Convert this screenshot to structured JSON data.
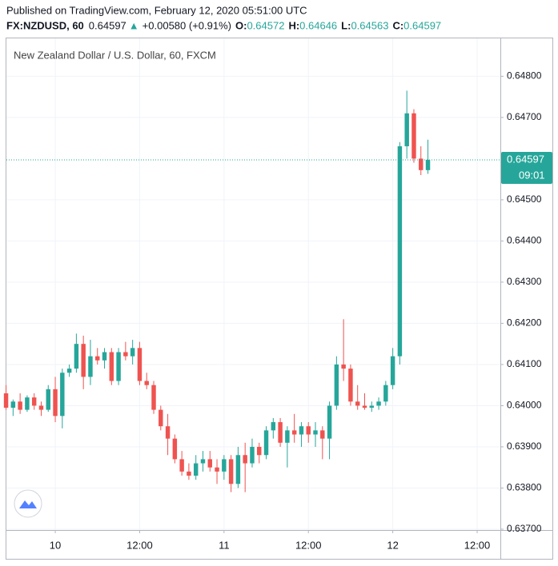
{
  "header": {
    "published": "Published on TradingView.com, February 12, 2020 05:51:00 UTC",
    "symbol": "FX:NZDUSD, 60",
    "price": "0.64597",
    "arrow": "▲",
    "change": "+0.00580 (+0.91%)",
    "ohlc": [
      {
        "label": "O:",
        "value": "0.64572"
      },
      {
        "label": "H:",
        "value": "0.64646"
      },
      {
        "label": "L:",
        "value": "0.64563"
      },
      {
        "label": "C:",
        "value": "0.64597"
      }
    ]
  },
  "chart_data": {
    "type": "candlestick",
    "title": "New Zealand Dollar / U.S. Dollar, 60, FXCM",
    "up_color": "#26a69a",
    "down_color": "#ef5350",
    "grid": true,
    "last_price": {
      "value": 0.64597,
      "label": "0.64597",
      "countdown": "09:01"
    },
    "xlim": [
      -6.95,
      63.3
    ],
    "xticks": [
      {
        "value": 0,
        "label": "10"
      },
      {
        "value": 12,
        "label": "12:00"
      },
      {
        "value": 24,
        "label": "11"
      },
      {
        "value": 36,
        "label": "12:00"
      },
      {
        "value": 48,
        "label": "12"
      },
      {
        "value": 60,
        "label": "12:00"
      }
    ],
    "ylim": [
      0.63698,
      0.64892
    ],
    "yticks": [
      {
        "value": 0.637,
        "label": "0.63700"
      },
      {
        "value": 0.638,
        "label": "0.63800"
      },
      {
        "value": 0.639,
        "label": "0.63900"
      },
      {
        "value": 0.64,
        "label": "0.64000"
      },
      {
        "value": 0.641,
        "label": "0.64100"
      },
      {
        "value": 0.642,
        "label": "0.64200"
      },
      {
        "value": 0.643,
        "label": "0.64300"
      },
      {
        "value": 0.644,
        "label": "0.64400"
      },
      {
        "value": 0.645,
        "label": "0.64500"
      },
      {
        "value": 0.647,
        "label": "0.64700"
      },
      {
        "value": 0.648,
        "label": "0.64800"
      }
    ],
    "x": [
      -7,
      -6,
      -5,
      -4,
      -3,
      -2,
      -1,
      0,
      1,
      2,
      3,
      4,
      5,
      6,
      7,
      8,
      9,
      10,
      11,
      12,
      13,
      14,
      15,
      16,
      17,
      18,
      19,
      20,
      21,
      22,
      23,
      24,
      25,
      26,
      27,
      28,
      29,
      30,
      31,
      32,
      33,
      34,
      35,
      36,
      37,
      38,
      39,
      40,
      41,
      42,
      43,
      44,
      45,
      46,
      47,
      48,
      49,
      50,
      51,
      52,
      53
    ],
    "open": [
      0.6403,
      0.63995,
      0.6401,
      0.6399,
      0.6402,
      0.64,
      0.6399,
      0.6404,
      0.63975,
      0.6408,
      0.6409,
      0.6415,
      0.6407,
      0.6412,
      0.6411,
      0.6413,
      0.6406,
      0.6413,
      0.6412,
      0.6414,
      0.6406,
      0.6405,
      0.6399,
      0.6395,
      0.6392,
      0.6387,
      0.6384,
      0.6383,
      0.6386,
      0.6387,
      0.6385,
      0.6384,
      0.6387,
      0.6381,
      0.6388,
      0.6386,
      0.639,
      0.6388,
      0.6394,
      0.6396,
      0.6391,
      0.6394,
      0.6393,
      0.6395,
      0.6393,
      0.6394,
      0.6392,
      0.64,
      0.641,
      0.6409,
      0.6401,
      0.64,
      0.63995,
      0.64,
      0.6401,
      0.6405,
      0.6412,
      0.6463,
      0.6471,
      0.646,
      0.64572
    ],
    "high": [
      0.6405,
      0.64015,
      0.6403,
      0.64025,
      0.6403,
      0.6401,
      0.6405,
      0.6407,
      0.6409,
      0.641,
      0.64175,
      0.6417,
      0.6416,
      0.6414,
      0.6414,
      0.6414,
      0.6414,
      0.64155,
      0.6416,
      0.64155,
      0.6408,
      0.6406,
      0.64,
      0.6398,
      0.6393,
      0.6389,
      0.6386,
      0.6388,
      0.6389,
      0.6389,
      0.6387,
      0.6388,
      0.6388,
      0.639,
      0.6391,
      0.6392,
      0.6391,
      0.6395,
      0.6397,
      0.6397,
      0.6395,
      0.6398,
      0.6396,
      0.6396,
      0.6396,
      0.6395,
      0.6401,
      0.6412,
      0.6421,
      0.641,
      0.6405,
      0.6403,
      0.6401,
      0.6402,
      0.6406,
      0.6414,
      0.6464,
      0.64765,
      0.6472,
      0.6463,
      0.64646
    ],
    "low": [
      0.6399,
      0.63975,
      0.6398,
      0.63985,
      0.6399,
      0.63975,
      0.63985,
      0.6396,
      0.63945,
      0.6407,
      0.6408,
      0.6404,
      0.6405,
      0.641,
      0.6409,
      0.6405,
      0.6405,
      0.6411,
      0.641,
      0.6405,
      0.6404,
      0.6398,
      0.6394,
      0.6388,
      0.6386,
      0.6383,
      0.6382,
      0.6382,
      0.6384,
      0.6384,
      0.6381,
      0.6382,
      0.6379,
      0.638,
      0.6379,
      0.6385,
      0.6386,
      0.6387,
      0.6392,
      0.639,
      0.6385,
      0.6391,
      0.639,
      0.6391,
      0.639,
      0.6387,
      0.6387,
      0.6399,
      0.6406,
      0.64,
      0.6399,
      0.6399,
      0.63985,
      0.6399,
      0.64,
      0.6404,
      0.641,
      0.646,
      0.6459,
      0.6456,
      0.64563
    ],
    "close": [
      0.63995,
      0.6401,
      0.6399,
      0.6402,
      0.64,
      0.6399,
      0.6404,
      0.63975,
      0.6408,
      0.6409,
      0.6415,
      0.6407,
      0.6412,
      0.6411,
      0.6413,
      0.6406,
      0.6413,
      0.6412,
      0.6414,
      0.6406,
      0.6405,
      0.6399,
      0.6395,
      0.6392,
      0.6387,
      0.6384,
      0.6383,
      0.6386,
      0.6387,
      0.6385,
      0.6384,
      0.6387,
      0.6381,
      0.6388,
      0.6386,
      0.639,
      0.6388,
      0.6394,
      0.6396,
      0.6391,
      0.6394,
      0.6393,
      0.6395,
      0.6393,
      0.6394,
      0.6392,
      0.64,
      0.641,
      0.6409,
      0.6401,
      0.64,
      0.63995,
      0.64,
      0.6401,
      0.6405,
      0.6412,
      0.6463,
      0.6471,
      0.646,
      0.64572,
      0.64597
    ]
  }
}
